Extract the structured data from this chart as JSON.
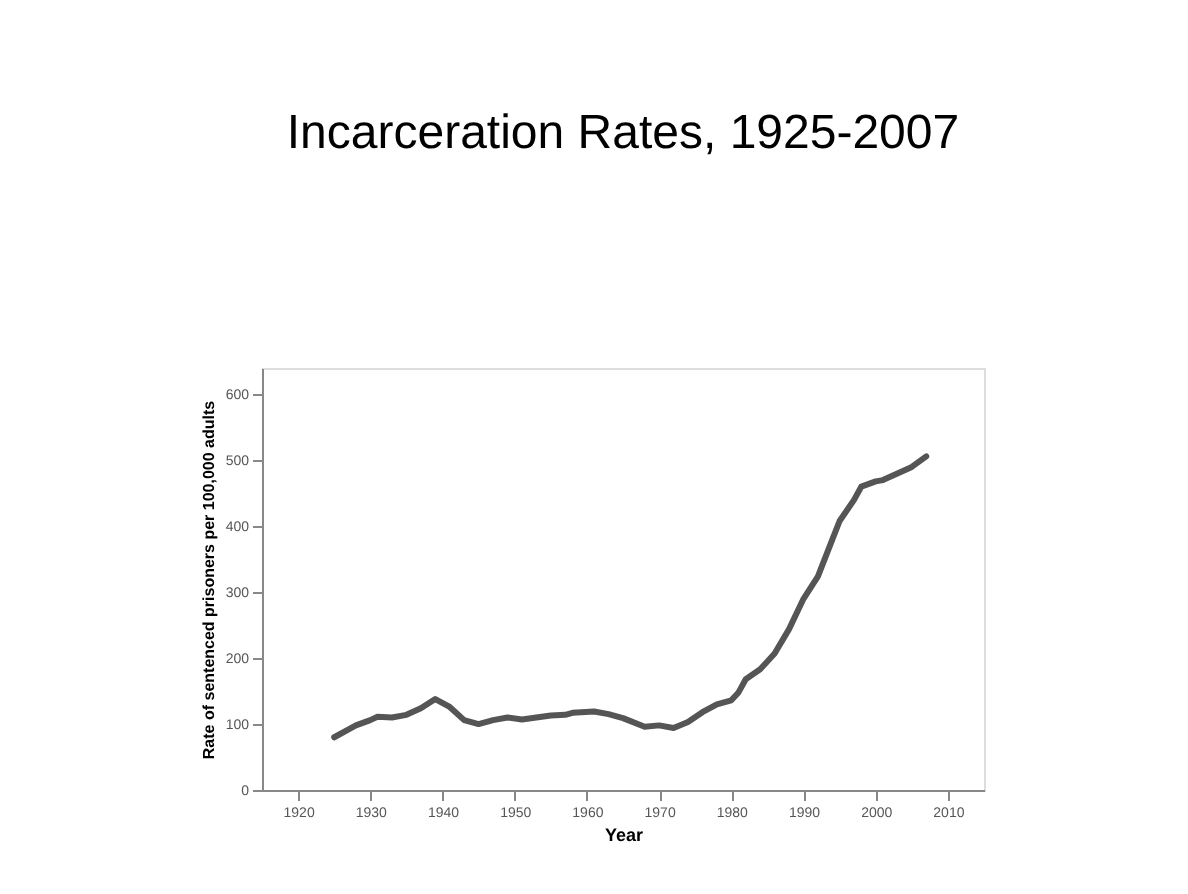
{
  "chart_data": {
    "type": "line",
    "title": "Incarceration Rates, 1925-2007",
    "xlabel": "Year",
    "ylabel": "Rate of sentenced prisoners per 100,000 adults",
    "x": [
      1925,
      1927,
      1928,
      1930,
      1931,
      1933,
      1935,
      1937,
      1939,
      1941,
      1943,
      1945,
      1947,
      1949,
      1951,
      1953,
      1955,
      1957,
      1958,
      1961,
      1963,
      1965,
      1968,
      1970,
      1972,
      1974,
      1976,
      1978,
      1980,
      1981,
      1982,
      1984,
      1986,
      1988,
      1990,
      1992,
      1994,
      1995,
      1997,
      1998,
      2000,
      2001,
      2003,
      2005,
      2007
    ],
    "series": [
      {
        "color": "#555555",
        "values": [
          80,
          92,
          98,
          106,
          111,
          110,
          114,
          124,
          138,
          126,
          106,
          100,
          106,
          110,
          107,
          110,
          113,
          114,
          117,
          119,
          115,
          109,
          96,
          98,
          94,
          103,
          118,
          130,
          136,
          148,
          168,
          183,
          207,
          244,
          290,
          324,
          380,
          408,
          440,
          460,
          468,
          470,
          480,
          490,
          506
        ]
      }
    ],
    "xlim": [
      1915,
      2015
    ],
    "xticks": [
      1920,
      1930,
      1940,
      1950,
      1960,
      1970,
      1980,
      1990,
      2000,
      2010
    ],
    "ylim": [
      0,
      640
    ],
    "yticks": [
      0,
      100,
      200,
      300,
      400,
      500,
      600
    ],
    "grid": false,
    "legend": false,
    "marker": "none",
    "line_style": "solid"
  }
}
